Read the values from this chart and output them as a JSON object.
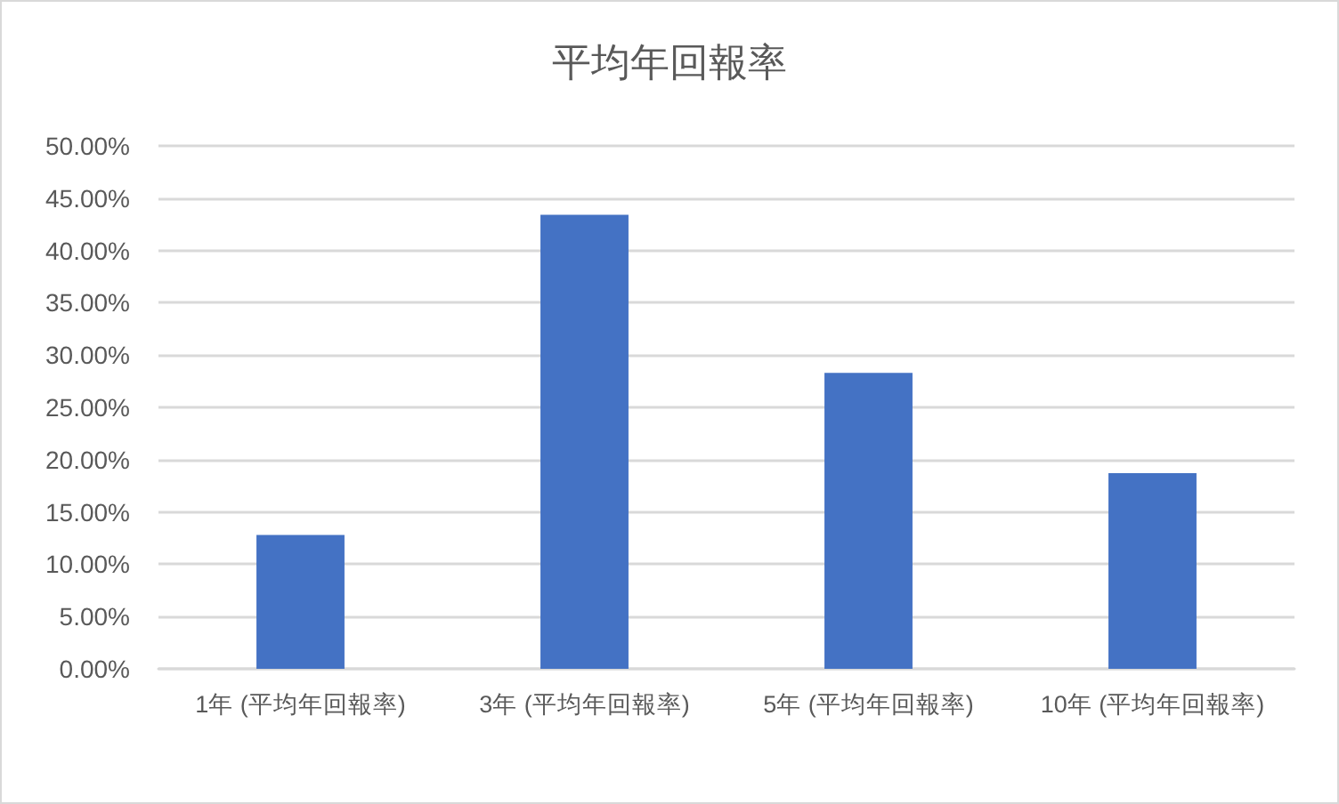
{
  "chart_data": {
    "type": "bar",
    "title": "平均年回報率",
    "categories": [
      "1年 (平均年回報率)",
      "3年 (平均年回報率)",
      "5年 (平均年回報率)",
      "10年 (平均年回報率)"
    ],
    "values": [
      12.8,
      43.4,
      28.3,
      18.7
    ],
    "color": "#4472c4",
    "ylim": [
      0,
      50
    ],
    "yticks": [
      {
        "value": 0,
        "label": "0.00%"
      },
      {
        "value": 5,
        "label": "5.00%"
      },
      {
        "value": 10,
        "label": "10.00%"
      },
      {
        "value": 15,
        "label": "15.00%"
      },
      {
        "value": 20,
        "label": "20.00%"
      },
      {
        "value": 25,
        "label": "25.00%"
      },
      {
        "value": 30,
        "label": "30.00%"
      },
      {
        "value": 35,
        "label": "35.00%"
      },
      {
        "value": 40,
        "label": "40.00%"
      },
      {
        "value": 45,
        "label": "45.00%"
      },
      {
        "value": 50,
        "label": "50.00%"
      }
    ],
    "grid": "y"
  }
}
